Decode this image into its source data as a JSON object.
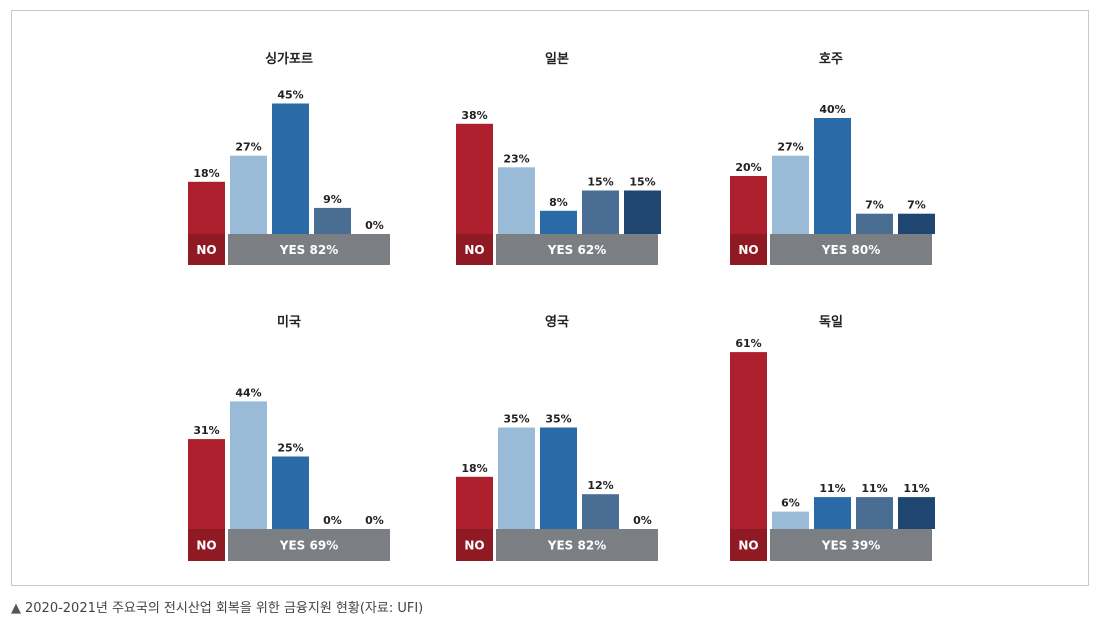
{
  "caption": "2020-2021년 주요국의 전시산업 회복을 위한 금융지원 현황(자료: UFI)",
  "colors": {
    "no_bar": "#ad1f2c",
    "no_band": "#8f1a24",
    "yes_band": "#7b7f84",
    "yes_series": [
      "#9abbd8",
      "#2a6aa6",
      "#4a6e93",
      "#1e4670"
    ]
  },
  "chart_data": [
    {
      "type": "bar",
      "title": "싱가포르",
      "values": [
        18,
        27,
        45,
        9,
        0
      ],
      "labels": [
        "18%",
        "27%",
        "45%",
        "9%",
        "0%"
      ],
      "no_label": "NO",
      "yes_label": "YES 82%"
    },
    {
      "type": "bar",
      "title": "일본",
      "values": [
        38,
        23,
        8,
        15,
        15
      ],
      "labels": [
        "38%",
        "23%",
        "8%",
        "15%",
        "15%"
      ],
      "no_label": "NO",
      "yes_label": "YES 62%"
    },
    {
      "type": "bar",
      "title": "호주",
      "values": [
        20,
        27,
        40,
        7,
        7
      ],
      "labels": [
        "20%",
        "27%",
        "40%",
        "7%",
        "7%"
      ],
      "no_label": "NO",
      "yes_label": "YES 80%"
    },
    {
      "type": "bar",
      "title": "미국",
      "values": [
        31,
        44,
        25,
        0,
        0
      ],
      "labels": [
        "31%",
        "44%",
        "25%",
        "0%",
        "0%"
      ],
      "no_label": "NO",
      "yes_label": "YES 69%"
    },
    {
      "type": "bar",
      "title": "영국",
      "values": [
        18,
        35,
        35,
        12,
        0
      ],
      "labels": [
        "18%",
        "35%",
        "35%",
        "12%",
        "0%"
      ],
      "no_label": "NO",
      "yes_label": "YES 82%"
    },
    {
      "type": "bar",
      "title": "독일",
      "values": [
        61,
        6,
        11,
        11,
        11
      ],
      "labels": [
        "61%",
        "6%",
        "11%",
        "11%",
        "11%"
      ],
      "no_label": "NO",
      "yes_label": "YES 39%"
    }
  ]
}
